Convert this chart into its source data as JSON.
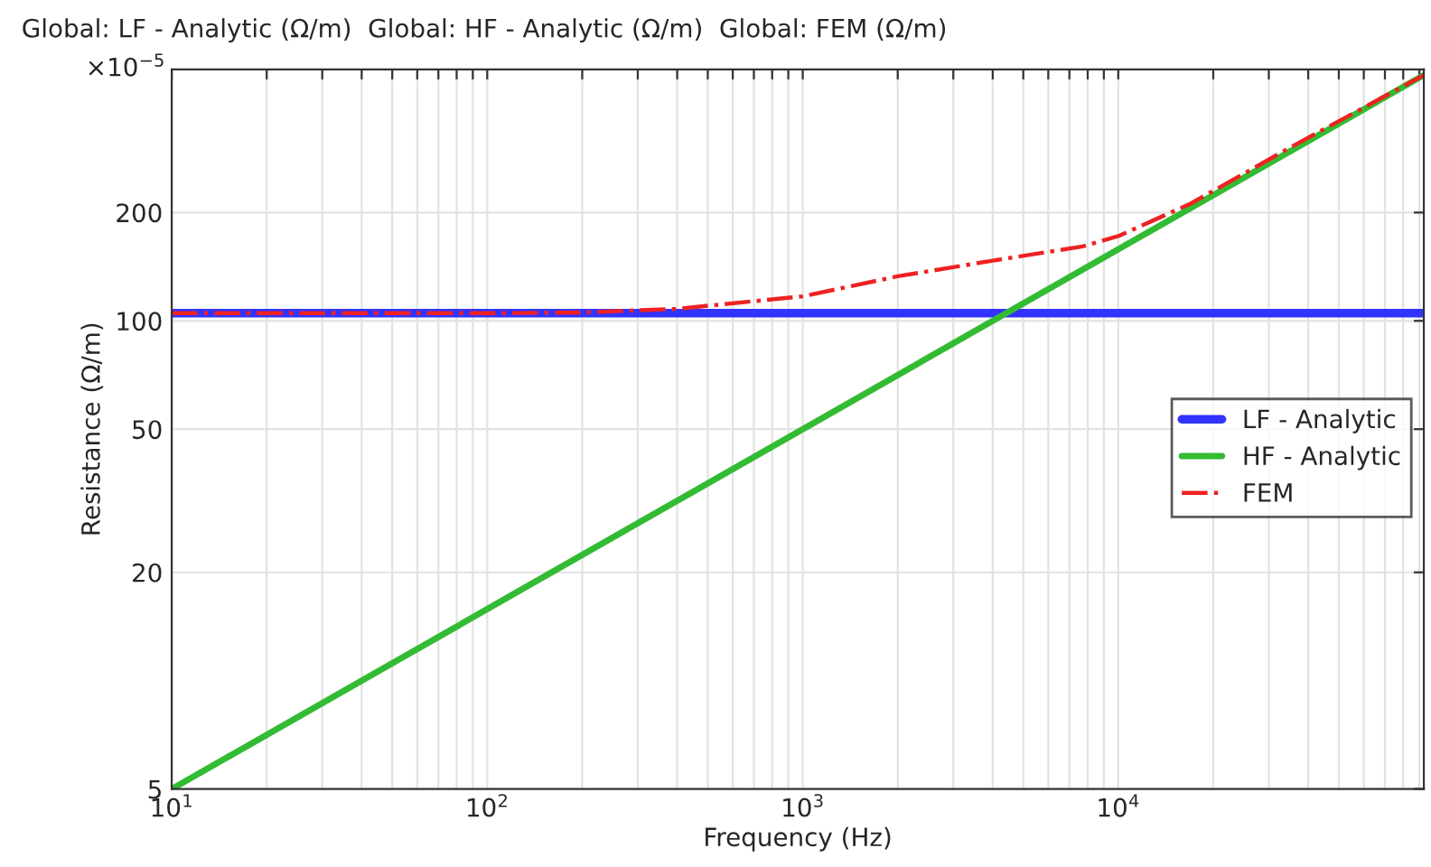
{
  "chart_data": {
    "type": "line",
    "title": "Global: LF - Analytic (Ω/m)  Global: HF - Analytic (Ω/m)  Global: FEM (Ω/m)",
    "xlabel": "Frequency (Hz)",
    "ylabel": "Resistance (Ω/m)",
    "annotations": [
      "×10$^{−5}$"
    ],
    "log": "xy",
    "grid": true,
    "legend": "right",
    "xlim": [
      10,
      93000
    ],
    "ylim": [
      5,
      500
    ],
    "xticks": [
      {
        "value": 10,
        "label": "10$^{1}$"
      },
      {
        "value": 20,
        "label": null
      },
      {
        "value": 30,
        "label": null
      },
      {
        "value": 40,
        "label": null
      },
      {
        "value": 50,
        "label": null
      },
      {
        "value": 60,
        "label": null
      },
      {
        "value": 70,
        "label": null
      },
      {
        "value": 80,
        "label": null
      },
      {
        "value": 90,
        "label": null
      },
      {
        "value": 100,
        "label": "10$^{2}$"
      },
      {
        "value": 200,
        "label": null
      },
      {
        "value": 300,
        "label": null
      },
      {
        "value": 400,
        "label": null
      },
      {
        "value": 500,
        "label": null
      },
      {
        "value": 600,
        "label": null
      },
      {
        "value": 700,
        "label": null
      },
      {
        "value": 800,
        "label": null
      },
      {
        "value": 900,
        "label": null
      },
      {
        "value": 1000,
        "label": "10$^{3}$"
      },
      {
        "value": 2000,
        "label": null
      },
      {
        "value": 3000,
        "label": null
      },
      {
        "value": 4000,
        "label": null
      },
      {
        "value": 5000,
        "label": null
      },
      {
        "value": 6000,
        "label": null
      },
      {
        "value": 7000,
        "label": null
      },
      {
        "value": 8000,
        "label": null
      },
      {
        "value": 9000,
        "label": null
      },
      {
        "value": 10000,
        "label": "10$^{4}$"
      },
      {
        "value": 20000,
        "label": null
      },
      {
        "value": 30000,
        "label": null
      },
      {
        "value": 40000,
        "label": null
      },
      {
        "value": 50000,
        "label": null
      },
      {
        "value": 60000,
        "label": null
      },
      {
        "value": 70000,
        "label": null
      },
      {
        "value": 80000,
        "label": null
      },
      {
        "value": 90000,
        "label": null
      }
    ],
    "yticks": [
      5,
      20,
      50,
      100,
      200
    ],
    "series": [
      {
        "name": "LF - Analytic",
        "color": "#3333ff",
        "line_style": "solid",
        "x": [
          10,
          93000
        ],
        "values": [
          105,
          105
        ]
      },
      {
        "name": "HF - Analytic",
        "color": "#33bb33",
        "line_style": "solid",
        "x": [
          10,
          93000
        ],
        "values": [
          5,
          482
        ]
      },
      {
        "name": "FEM",
        "color": "#ee2222",
        "line_style": "dashdot",
        "x": [
          10,
          100,
          200,
          400,
          1000,
          2000,
          4000,
          7700,
          10000,
          17000,
          35000,
          93000
        ],
        "values": [
          105,
          105,
          105.5,
          108,
          117,
          133,
          147,
          161,
          172,
          212,
          303,
          482
        ]
      }
    ]
  }
}
